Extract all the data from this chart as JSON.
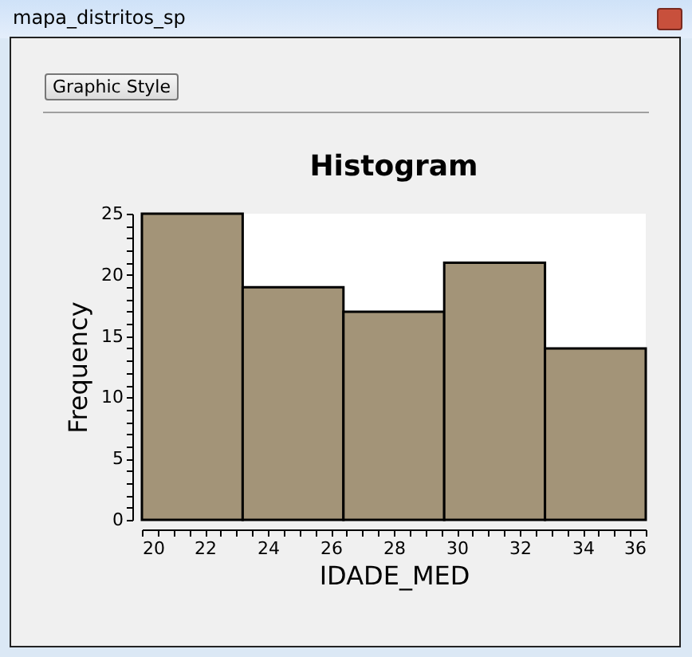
{
  "chart_data": {
    "type": "histogram",
    "title": "Histogram",
    "xlabel": "IDADE_MED",
    "ylabel": "Frequency",
    "annotations": [
      "mapa_distritos_sp",
      "Graphic Style"
    ],
    "bins": [
      20,
      23.2,
      26.4,
      29.6,
      32.8,
      36
    ],
    "values": [
      25,
      19,
      17,
      21,
      14
    ],
    "color": "#a39478",
    "xlim": [
      20,
      36
    ],
    "xticks": [
      20,
      {
        "value": 20.5,
        "label": null
      },
      {
        "value": 21,
        "label": null
      },
      {
        "value": 21.5,
        "label": null
      },
      22,
      {
        "value": 22.5,
        "label": null
      },
      {
        "value": 23,
        "label": null
      },
      {
        "value": 23.5,
        "label": null
      },
      24,
      {
        "value": 24.5,
        "label": null
      },
      {
        "value": 25,
        "label": null
      },
      {
        "value": 25.5,
        "label": null
      },
      26,
      {
        "value": 26.5,
        "label": null
      },
      {
        "value": 27,
        "label": null
      },
      {
        "value": 27.5,
        "label": null
      },
      28,
      {
        "value": 28.5,
        "label": null
      },
      {
        "value": 29,
        "label": null
      },
      {
        "value": 29.5,
        "label": null
      },
      30,
      {
        "value": 30.5,
        "label": null
      },
      {
        "value": 31,
        "label": null
      },
      {
        "value": 31.5,
        "label": null
      },
      32,
      {
        "value": 32.5,
        "label": null
      },
      {
        "value": 33,
        "label": null
      },
      {
        "value": 33.5,
        "label": null
      },
      34,
      {
        "value": 34.5,
        "label": null
      },
      {
        "value": 35,
        "label": null
      },
      {
        "value": 35.5,
        "label": null
      },
      36
    ],
    "ylim": [
      0,
      25
    ],
    "yticks": [
      0,
      {
        "value": 1,
        "label": null
      },
      {
        "value": 2,
        "label": null
      },
      {
        "value": 3,
        "label": null
      },
      {
        "value": 4,
        "label": null
      },
      5,
      {
        "value": 6,
        "label": null
      },
      {
        "value": 7,
        "label": null
      },
      {
        "value": 8,
        "label": null
      },
      {
        "value": 9,
        "label": null
      },
      10,
      {
        "value": 11,
        "label": null
      },
      {
        "value": 12,
        "label": null
      },
      {
        "value": 13,
        "label": null
      },
      {
        "value": 14,
        "label": null
      },
      15,
      {
        "value": 16,
        "label": null
      },
      {
        "value": 17,
        "label": null
      },
      {
        "value": 18,
        "label": null
      },
      {
        "value": 19,
        "label": null
      },
      20,
      {
        "value": 21,
        "label": null
      },
      {
        "value": 22,
        "label": null
      },
      {
        "value": 23,
        "label": null
      },
      {
        "value": 24,
        "label": null
      },
      25
    ],
    "grid": false,
    "legend": false
  }
}
